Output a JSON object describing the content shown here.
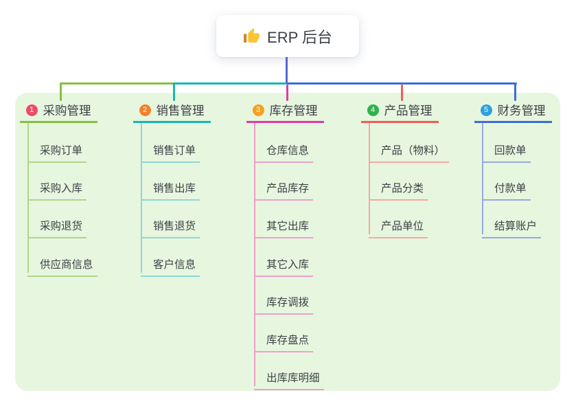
{
  "root": {
    "label": "ERP 后台",
    "icon": "thumbs-up"
  },
  "colors": {
    "page_bg": "#ffffff",
    "panel_bg": "#e7f6df",
    "stem": "#5468d4",
    "text": "#3e4247",
    "thumb_hand": "#fbc531",
    "thumb_cuff": "#c98635"
  },
  "branches": [
    {
      "number": "1",
      "label": "采购管理",
      "badge_color": "#ef4b66",
      "line_color": "#84c141",
      "child_line_color": "#aed687",
      "children": [
        "采购订单",
        "采购入库",
        "采购退货",
        "供应商信息"
      ]
    },
    {
      "number": "2",
      "label": "销售管理",
      "badge_color": "#f5802b",
      "line_color": "#16b7b3",
      "child_line_color": "#8bd8d3",
      "children": [
        "销售订单",
        "销售出库",
        "销售退货",
        "客户信息"
      ]
    },
    {
      "number": "3",
      "label": "库存管理",
      "badge_color": "#f5a01f",
      "line_color": "#e13aa4",
      "child_line_color": "#ef9ecb",
      "children": [
        "仓库信息",
        "产品库存",
        "其它出库",
        "其它入库",
        "库存调拨",
        "库存盘点",
        "出库库明细"
      ]
    },
    {
      "number": "4",
      "label": "产品管理",
      "badge_color": "#2fb14e",
      "line_color": "#f15c55",
      "child_line_color": "#f7a7a2",
      "children": [
        "产品（物料）",
        "产品分类",
        "产品单位"
      ]
    },
    {
      "number": "5",
      "label": "财务管理",
      "badge_color": "#2ea1df",
      "line_color": "#3d6bd8",
      "child_line_color": "#96a9dd",
      "children": [
        "回款单",
        "付款单",
        "结算账户"
      ]
    }
  ]
}
